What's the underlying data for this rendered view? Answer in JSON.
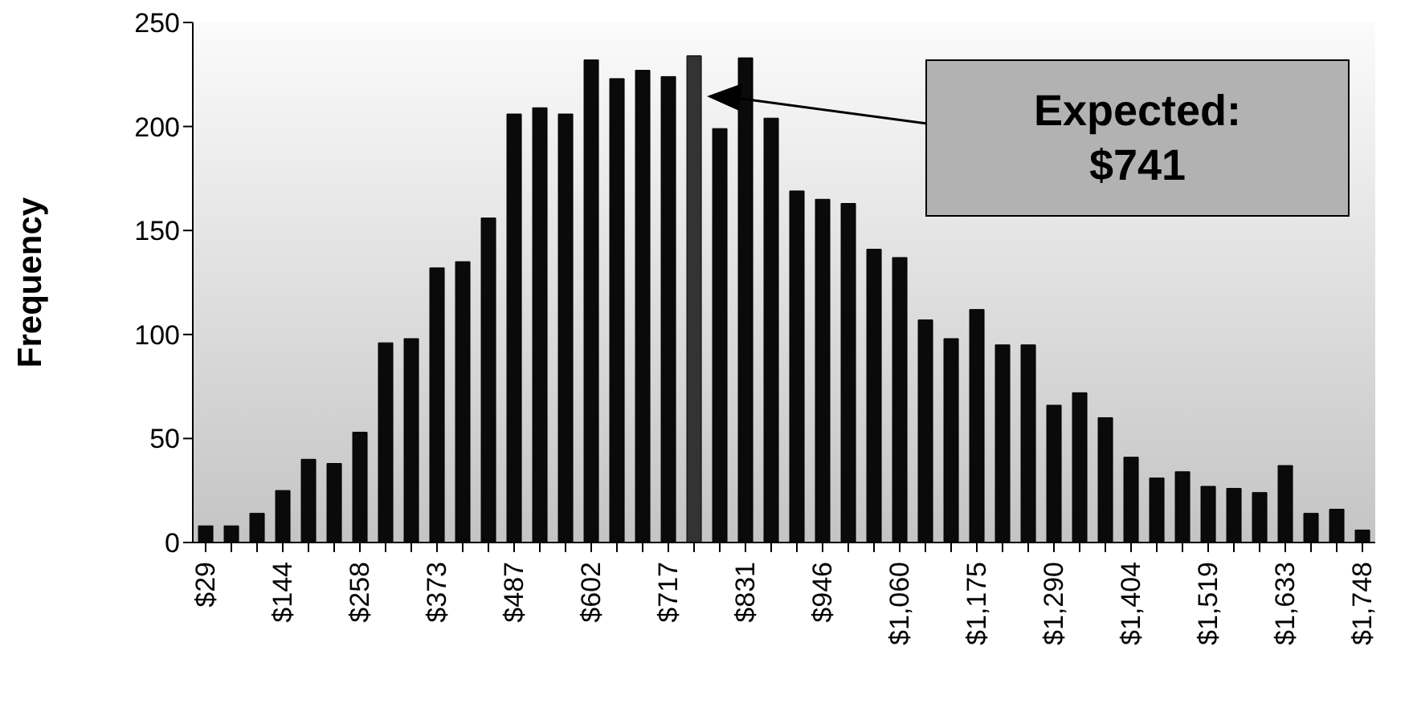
{
  "chart_data": {
    "type": "bar",
    "categories": [
      "$29",
      null,
      null,
      "$144",
      null,
      null,
      "$258",
      null,
      null,
      "$373",
      null,
      null,
      "$487",
      null,
      null,
      "$602",
      null,
      null,
      "$717",
      null,
      null,
      "$831",
      null,
      null,
      "$946",
      null,
      null,
      "$1,060",
      null,
      null,
      "$1,175",
      null,
      null,
      "$1,290",
      null,
      null,
      "$1,404",
      null,
      null,
      "$1,519",
      null,
      null,
      "$1,633",
      null,
      null,
      "$1,748"
    ],
    "values": [
      8,
      8,
      14,
      25,
      40,
      38,
      53,
      96,
      98,
      132,
      135,
      156,
      206,
      209,
      206,
      232,
      223,
      227,
      224,
      234,
      199,
      233,
      204,
      169,
      165,
      163,
      141,
      137,
      107,
      98,
      112,
      95,
      95,
      66,
      72,
      60,
      41,
      31,
      34,
      27,
      26,
      24,
      37,
      14,
      16,
      6
    ],
    "colors": [
      "#0a0a0a",
      "#0a0a0a",
      "#0a0a0a",
      "#0a0a0a",
      "#0a0a0a",
      "#0a0a0a",
      "#0a0a0a",
      "#0a0a0a",
      "#0a0a0a",
      "#0a0a0a",
      "#0a0a0a",
      "#0a0a0a",
      "#0a0a0a",
      "#0a0a0a",
      "#0a0a0a",
      "#0a0a0a",
      "#0a0a0a",
      "#0a0a0a",
      "#0a0a0a",
      "#333333",
      "#0a0a0a",
      "#0a0a0a",
      "#0a0a0a",
      "#0a0a0a",
      "#0a0a0a",
      "#0a0a0a",
      "#0a0a0a",
      "#0a0a0a",
      "#0a0a0a",
      "#0a0a0a",
      "#0a0a0a",
      "#0a0a0a",
      "#0a0a0a",
      "#0a0a0a",
      "#0a0a0a",
      "#0a0a0a",
      "#0a0a0a",
      "#0a0a0a",
      "#0a0a0a",
      "#0a0a0a",
      "#0a0a0a",
      "#0a0a0a",
      "#0a0a0a",
      "#0a0a0a",
      "#0a0a0a",
      "#0a0a0a"
    ],
    "ylabel": "Frequency",
    "ylim": [
      0,
      250
    ],
    "yticks": [
      0,
      50,
      100,
      150,
      200,
      250
    ],
    "grid": false,
    "annotations": [
      "Expected:\n$741"
    ]
  }
}
